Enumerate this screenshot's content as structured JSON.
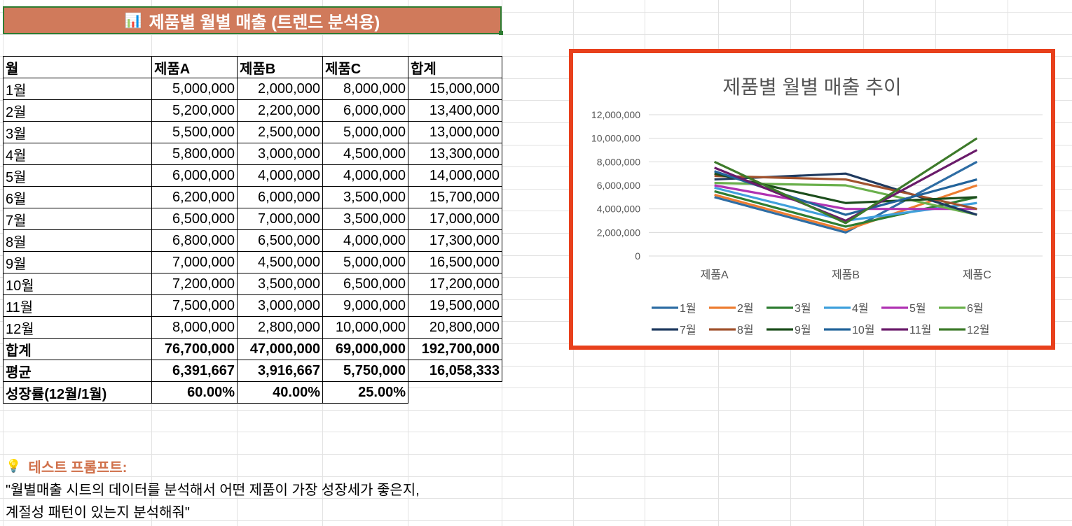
{
  "banner": {
    "icon": "📊",
    "title": "제품별 월별 매출 (트렌드 분석용)"
  },
  "table": {
    "headers": [
      "월",
      "제품A",
      "제품B",
      "제품C",
      "합계"
    ],
    "rows": [
      [
        "1월",
        "5,000,000",
        "2,000,000",
        "8,000,000",
        "15,000,000"
      ],
      [
        "2월",
        "5,200,000",
        "2,200,000",
        "6,000,000",
        "13,400,000"
      ],
      [
        "3월",
        "5,500,000",
        "2,500,000",
        "5,000,000",
        "13,000,000"
      ],
      [
        "4월",
        "5,800,000",
        "3,000,000",
        "4,500,000",
        "13,300,000"
      ],
      [
        "5월",
        "6,000,000",
        "4,000,000",
        "4,000,000",
        "14,000,000"
      ],
      [
        "6월",
        "6,200,000",
        "6,000,000",
        "3,500,000",
        "15,700,000"
      ],
      [
        "7월",
        "6,500,000",
        "7,000,000",
        "3,500,000",
        "17,000,000"
      ],
      [
        "8월",
        "6,800,000",
        "6,500,000",
        "4,000,000",
        "17,300,000"
      ],
      [
        "9월",
        "7,000,000",
        "4,500,000",
        "5,000,000",
        "16,500,000"
      ],
      [
        "10월",
        "7,200,000",
        "3,500,000",
        "6,500,000",
        "17,200,000"
      ],
      [
        "11월",
        "7,500,000",
        "3,000,000",
        "9,000,000",
        "19,500,000"
      ],
      [
        "12월",
        "8,000,000",
        "2,800,000",
        "10,000,000",
        "20,800,000"
      ]
    ],
    "summary": [
      [
        "합계",
        "76,700,000",
        "47,000,000",
        "69,000,000",
        "192,700,000"
      ],
      [
        "평균",
        "6,391,667",
        "3,916,667",
        "5,750,000",
        "16,058,333"
      ],
      [
        "성장률(12월/1월)",
        "60.00%",
        "40.00%",
        "25.00%",
        ""
      ]
    ]
  },
  "prompt": {
    "icon": "💡",
    "title": "테스트 프롬프트:",
    "line1": "\"월별매출 시트의 데이터를 분석해서 어떤 제품이 가장 성장세가 좋은지,",
    "line2": "계절성 패턴이 있는지 분석해줘\""
  },
  "chart_data": {
    "type": "line",
    "title": "제품별 월별 매출 추이",
    "categories": [
      "제품A",
      "제품B",
      "제품C"
    ],
    "yticks": [
      "0",
      "2,000,000",
      "4,000,000",
      "6,000,000",
      "8,000,000",
      "10,000,000",
      "12,000,000"
    ],
    "ylim": [
      0,
      12000000
    ],
    "grid": true,
    "legend_position": "bottom",
    "series": [
      {
        "name": "1월",
        "color": "#2e6da4",
        "values": [
          5000000,
          2000000,
          8000000
        ]
      },
      {
        "name": "2월",
        "color": "#ed7d31",
        "values": [
          5200000,
          2200000,
          6000000
        ]
      },
      {
        "name": "3월",
        "color": "#2e7d32",
        "values": [
          5500000,
          2500000,
          5000000
        ]
      },
      {
        "name": "4월",
        "color": "#3fa0dc",
        "values": [
          5800000,
          3000000,
          4500000
        ]
      },
      {
        "name": "5월",
        "color": "#b033b3",
        "values": [
          6000000,
          4000000,
          4000000
        ]
      },
      {
        "name": "6월",
        "color": "#6ab04c",
        "values": [
          6200000,
          6000000,
          3500000
        ]
      },
      {
        "name": "7월",
        "color": "#1f3a5f",
        "values": [
          6500000,
          7000000,
          3500000
        ]
      },
      {
        "name": "8월",
        "color": "#a0522d",
        "values": [
          6800000,
          6500000,
          4000000
        ]
      },
      {
        "name": "9월",
        "color": "#1b4d1b",
        "values": [
          7000000,
          4500000,
          5000000
        ]
      },
      {
        "name": "10월",
        "color": "#22639a",
        "values": [
          7200000,
          3500000,
          6500000
        ]
      },
      {
        "name": "11월",
        "color": "#6a1b6a",
        "values": [
          7500000,
          3000000,
          9000000
        ]
      },
      {
        "name": "12월",
        "color": "#3d7a2a",
        "values": [
          8000000,
          2800000,
          10000000
        ]
      }
    ]
  }
}
